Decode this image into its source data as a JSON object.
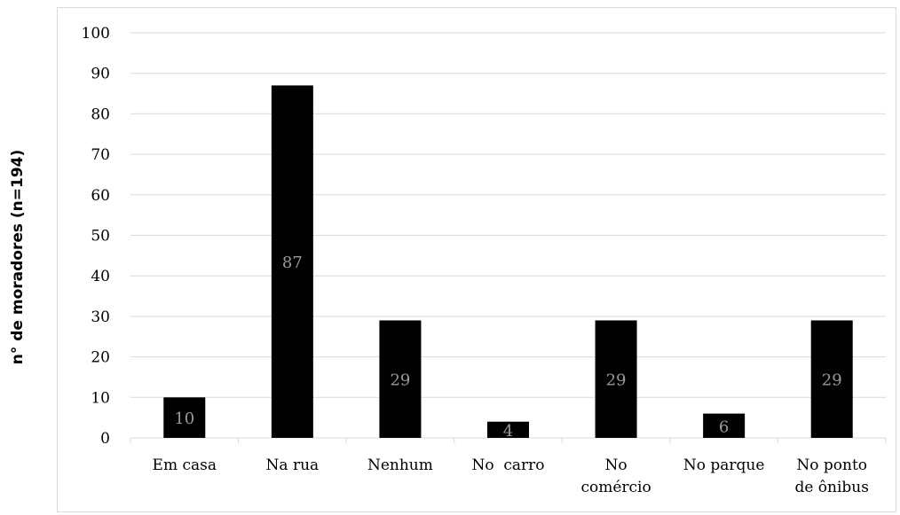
{
  "chart_data": {
    "type": "bar",
    "ylabel": "n° de moradores (n=194)",
    "xlabel": "",
    "ylim": [
      0,
      100
    ],
    "yticks": [
      0,
      10,
      20,
      30,
      40,
      50,
      60,
      70,
      80,
      90,
      100
    ],
    "grid": true,
    "categories": [
      [
        "Em casa"
      ],
      [
        "Na rua"
      ],
      [
        "Nenhum"
      ],
      [
        "No  carro"
      ],
      [
        "No",
        "comércio"
      ],
      [
        "No parque"
      ],
      [
        "No ponto",
        "de ônibus"
      ]
    ],
    "values": [
      10,
      87,
      29,
      4,
      29,
      6,
      29
    ],
    "data_labels": [
      "10",
      "87",
      "29",
      "4",
      "29",
      "6",
      "29"
    ],
    "bar_color": "#000000",
    "label_color": "#9a9a9a",
    "grid_color": "#d9d9d9"
  }
}
